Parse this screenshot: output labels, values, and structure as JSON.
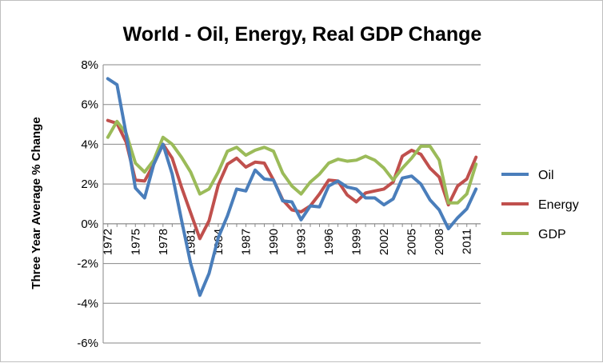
{
  "chart_data": {
    "type": "line",
    "title": "World - Oil, Energy, Real GDP Change",
    "xlabel": "",
    "ylabel": "Three Year Average % Change",
    "x": [
      1972,
      1973,
      1974,
      1975,
      1976,
      1977,
      1978,
      1979,
      1980,
      1981,
      1982,
      1983,
      1984,
      1985,
      1986,
      1987,
      1988,
      1989,
      1990,
      1991,
      1992,
      1993,
      1994,
      1995,
      1996,
      1997,
      1998,
      1999,
      2000,
      2001,
      2002,
      2003,
      2004,
      2005,
      2006,
      2007,
      2008,
      2009,
      2010,
      2011,
      2012
    ],
    "x_tick_labels": [
      "1972",
      "1975",
      "1978",
      "1981",
      "1984",
      "1987",
      "1990",
      "1993",
      "1996",
      "1999",
      "2002",
      "2005",
      "2008",
      "2011"
    ],
    "x_tick_values": [
      1972,
      1975,
      1978,
      1981,
      1984,
      1987,
      1990,
      1993,
      1996,
      1999,
      2002,
      2005,
      2008,
      2011
    ],
    "y_tick_labels": [
      "8%",
      "6%",
      "4%",
      "2%",
      "0%",
      "-2%",
      "-4%",
      "-6%"
    ],
    "y_tick_values": [
      8,
      6,
      4,
      2,
      0,
      -2,
      -4,
      -6
    ],
    "ylim": [
      -6,
      8
    ],
    "xlim": [
      1972,
      2012
    ],
    "grid": "horizontal",
    "legend_position": "right",
    "series": [
      {
        "name": "Oil",
        "color": "#4a7ebb",
        "values": [
          7.3,
          7.0,
          4.5,
          1.8,
          1.3,
          3.0,
          4.0,
          2.5,
          0.2,
          -2.0,
          -3.6,
          -2.5,
          -0.7,
          0.4,
          1.75,
          1.65,
          2.7,
          2.25,
          2.2,
          1.15,
          1.1,
          0.2,
          0.9,
          0.85,
          1.9,
          2.15,
          1.85,
          1.75,
          1.3,
          1.3,
          0.95,
          1.25,
          2.3,
          2.4,
          2.0,
          1.2,
          0.7,
          -0.25,
          0.3,
          0.75,
          1.75
        ]
      },
      {
        "name": "Energy",
        "color": "#c0504d",
        "values": [
          5.2,
          5.05,
          4.1,
          2.2,
          2.15,
          3.0,
          4.0,
          3.3,
          1.85,
          0.55,
          -0.75,
          0.15,
          1.95,
          3.0,
          3.3,
          2.85,
          3.1,
          3.05,
          2.2,
          1.2,
          0.7,
          0.6,
          0.9,
          1.5,
          2.2,
          2.15,
          1.45,
          1.1,
          1.55,
          1.65,
          1.75,
          2.1,
          3.4,
          3.7,
          3.5,
          2.8,
          2.35,
          0.95,
          1.9,
          2.25,
          3.35
        ]
      },
      {
        "name": "GDP",
        "color": "#9bbb59",
        "values": [
          4.35,
          5.15,
          4.55,
          3.05,
          2.6,
          3.2,
          4.35,
          4.0,
          3.35,
          2.6,
          1.5,
          1.75,
          2.6,
          3.65,
          3.85,
          3.45,
          3.7,
          3.85,
          3.65,
          2.55,
          1.9,
          1.5,
          2.1,
          2.5,
          3.05,
          3.25,
          3.15,
          3.2,
          3.4,
          3.2,
          2.8,
          2.2,
          2.8,
          3.3,
          3.9,
          3.9,
          3.2,
          1.05,
          1.05,
          1.5,
          3.0
        ]
      }
    ]
  }
}
